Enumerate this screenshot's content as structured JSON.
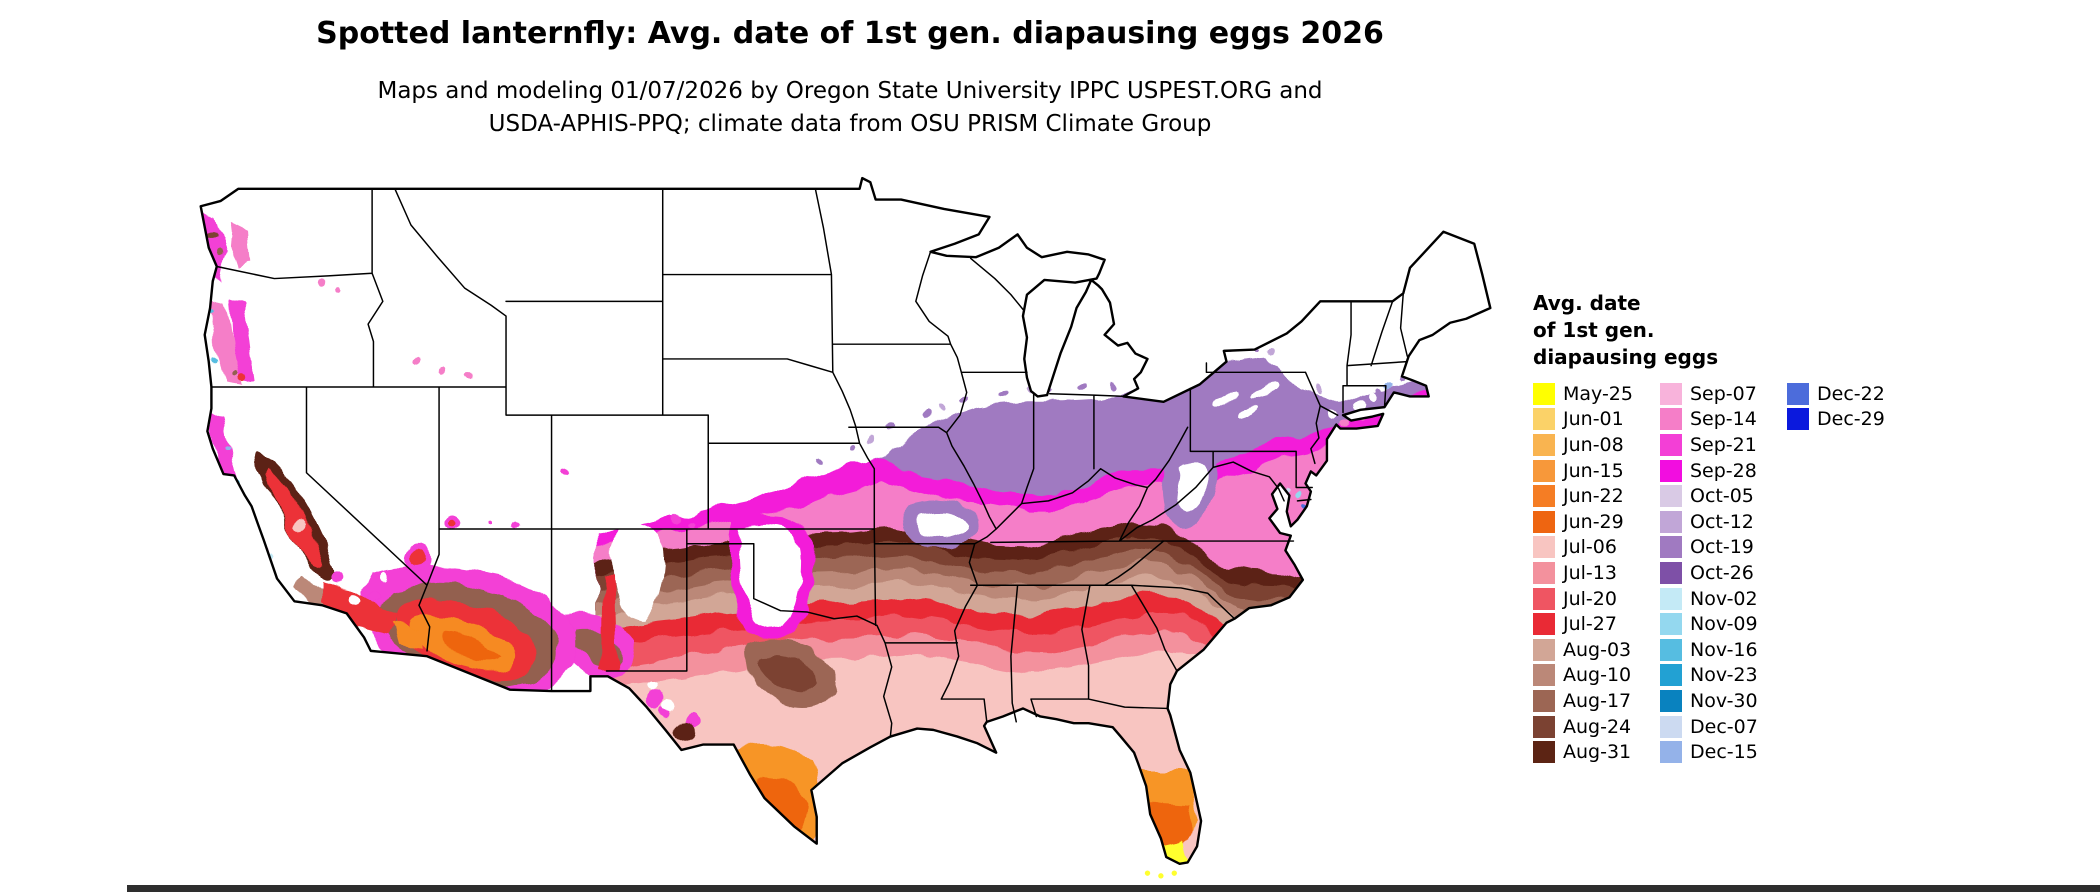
{
  "header": {
    "title": "Spotted lanternfly: Avg. date of 1st gen. diapausing eggs 2026",
    "subtitle_line1": "Maps and modeling 01/07/2026 by Oregon State University IPPC USPEST.ORG and",
    "subtitle_line2": "USDA-APHIS-PPQ; climate data from OSU PRISM Climate Group"
  },
  "legend": {
    "title_lines": [
      "Avg. date",
      "of 1st gen.",
      "diapausing eggs"
    ],
    "columns": [
      [
        {
          "label": "May-25",
          "color": "#FFFF00"
        },
        {
          "label": "Jun-01",
          "color": "#FBD268"
        },
        {
          "label": "Jun-08",
          "color": "#F9B450"
        },
        {
          "label": "Jun-15",
          "color": "#F7983A"
        },
        {
          "label": "Jun-22",
          "color": "#F57D24"
        },
        {
          "label": "Jun-29",
          "color": "#EE6511"
        },
        {
          "label": "Jul-06",
          "color": "#F8C5C1"
        },
        {
          "label": "Jul-13",
          "color": "#F3919D"
        },
        {
          "label": "Jul-20",
          "color": "#EF5562"
        },
        {
          "label": "Jul-27",
          "color": "#E92A35"
        },
        {
          "label": "Aug-03",
          "color": "#D2A696"
        },
        {
          "label": "Aug-10",
          "color": "#BB8878"
        },
        {
          "label": "Aug-17",
          "color": "#9C6654"
        },
        {
          "label": "Aug-24",
          "color": "#7B4232"
        },
        {
          "label": "Aug-31",
          "color": "#5C2414"
        }
      ],
      [
        {
          "label": "Sep-07",
          "color": "#F8B3DB"
        },
        {
          "label": "Sep-14",
          "color": "#F57EC8"
        },
        {
          "label": "Sep-21",
          "color": "#F33FD6"
        },
        {
          "label": "Sep-28",
          "color": "#F20DE0"
        },
        {
          "label": "Oct-05",
          "color": "#D9CAE5"
        },
        {
          "label": "Oct-12",
          "color": "#C1A6D7"
        },
        {
          "label": "Oct-19",
          "color": "#A07AC1"
        },
        {
          "label": "Oct-26",
          "color": "#7E50A7"
        },
        {
          "label": "Nov-02",
          "color": "#C4EAF6"
        },
        {
          "label": "Nov-09",
          "color": "#94D8EF"
        },
        {
          "label": "Nov-16",
          "color": "#56BDE1"
        },
        {
          "label": "Nov-23",
          "color": "#22A1D3"
        },
        {
          "label": "Nov-30",
          "color": "#0982BF"
        },
        {
          "label": "Dec-07",
          "color": "#CCDAF1"
        },
        {
          "label": "Dec-15",
          "color": "#94B2E9"
        }
      ],
      [
        {
          "label": "Dec-22",
          "color": "#4C6CDB"
        },
        {
          "label": "Dec-29",
          "color": "#0B19DD"
        }
      ]
    ]
  }
}
